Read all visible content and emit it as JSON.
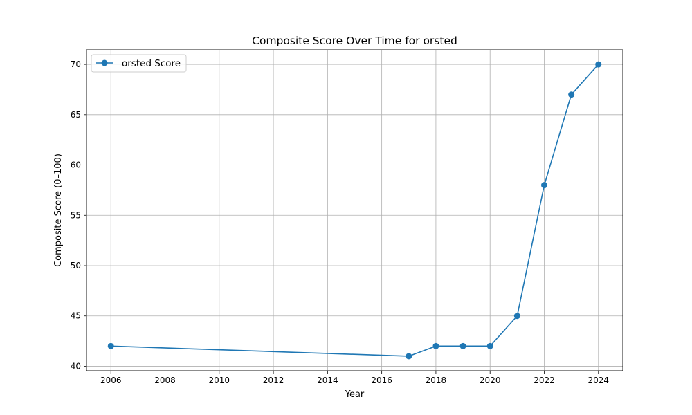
{
  "chart_data": {
    "type": "line",
    "title": "Composite Score Over Time for orsted",
    "xlabel": "Year",
    "ylabel": "Composite Score (0–100)",
    "xlim": [
      2005.1,
      2024.9
    ],
    "ylim": [
      39.55,
      71.45
    ],
    "xticks": [
      2006,
      2008,
      2010,
      2012,
      2014,
      2016,
      2018,
      2020,
      2022,
      2024
    ],
    "yticks": [
      40,
      45,
      50,
      55,
      60,
      65,
      70
    ],
    "grid": true,
    "legend_position": "upper left",
    "series": [
      {
        "name": "orsted Score",
        "color": "#1f77b4",
        "marker": "circle",
        "x": [
          2006,
          2017,
          2018,
          2019,
          2020,
          2021,
          2022,
          2023,
          2024
        ],
        "y": [
          42,
          41,
          42,
          42,
          42,
          45,
          58,
          67,
          70
        ]
      }
    ]
  }
}
